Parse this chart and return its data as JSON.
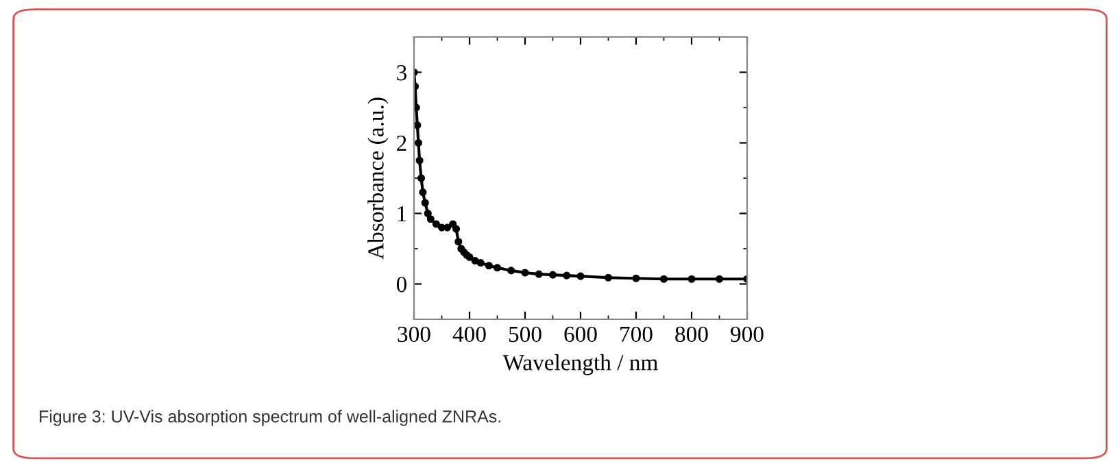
{
  "chart_data": {
    "type": "line",
    "xlabel": "Wavelength / nm",
    "ylabel": "Absorbance (a.u.)",
    "annotations": [
      "Figure 3: UV-Vis absorption spectrum of well-aligned ZNRAs."
    ],
    "x": [
      300,
      302,
      304,
      306,
      308,
      310,
      313,
      316,
      320,
      325,
      330,
      340,
      350,
      360,
      370,
      376,
      380,
      385,
      390,
      395,
      400,
      410,
      420,
      435,
      450,
      475,
      500,
      525,
      550,
      575,
      600,
      650,
      700,
      750,
      800,
      850,
      900
    ],
    "series": [
      {
        "color": "#000000",
        "values": [
          3.0,
          2.8,
          2.5,
          2.25,
          2.0,
          1.75,
          1.5,
          1.3,
          1.15,
          1.0,
          0.92,
          0.85,
          0.8,
          0.8,
          0.85,
          0.78,
          0.6,
          0.5,
          0.45,
          0.41,
          0.38,
          0.33,
          0.3,
          0.26,
          0.23,
          0.19,
          0.16,
          0.14,
          0.13,
          0.12,
          0.11,
          0.09,
          0.08,
          0.07,
          0.07,
          0.07,
          0.07
        ]
      }
    ],
    "xlim": [
      300,
      900
    ],
    "xticks": [
      300,
      400,
      500,
      600,
      700,
      800,
      900
    ],
    "ylim": [
      -0.5,
      3.5
    ],
    "yticks": [
      0,
      1,
      2,
      3
    ],
    "marker": "circle",
    "line_style": "solid",
    "grid": false,
    "legend": false
  }
}
